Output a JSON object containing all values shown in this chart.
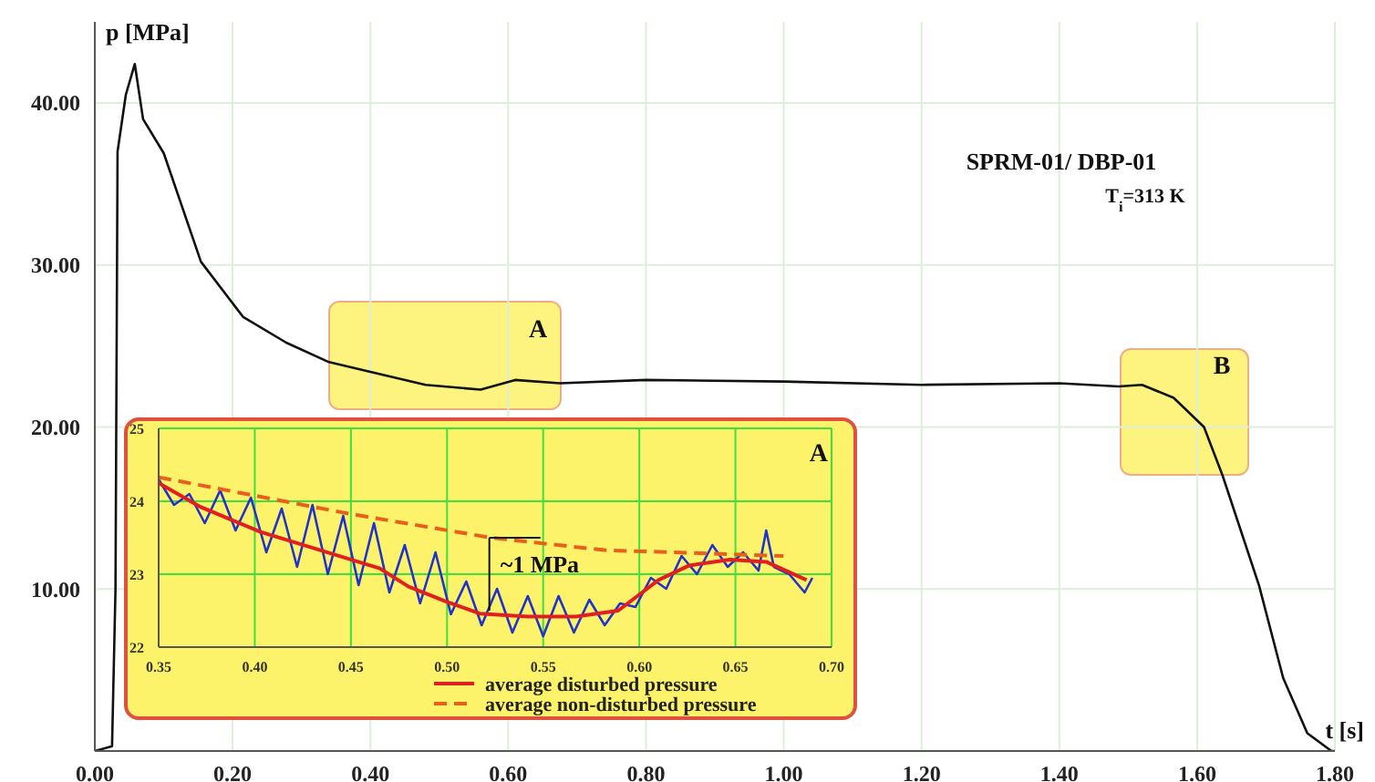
{
  "chart_data": [
    {
      "type": "line",
      "xlabel": "t [s]",
      "ylabel": "p [MPa]",
      "xlim": [
        0,
        1.8
      ],
      "ylim": [
        0,
        45
      ],
      "xticks": [
        {
          "value": 0,
          "label": "0.00"
        },
        {
          "value": 0.2,
          "label": "0.20"
        },
        {
          "value": 0.4,
          "label": "0.40"
        },
        {
          "value": 0.6,
          "label": "0.60"
        },
        {
          "value": 0.8,
          "label": "0.80"
        },
        {
          "value": 1,
          "label": "1.00"
        },
        {
          "value": 1.2,
          "label": "1.20"
        },
        {
          "value": 1.4,
          "label": "1.40"
        },
        {
          "value": 1.6,
          "label": "1.60"
        },
        {
          "value": 1.8,
          "label": "1.80"
        }
      ],
      "yticks": [
        {
          "value": 10,
          "label": "10.00"
        },
        {
          "value": 20,
          "label": "20.00"
        },
        {
          "value": 30,
          "label": "30.00"
        },
        {
          "value": 40,
          "label": "40.00"
        }
      ],
      "grid": true,
      "marker": "none",
      "annotations": [
        "SPRM-01/ DBP-01",
        "T$_{i}$=313 K",
        "A",
        "B"
      ],
      "series": [
        {
          "color": "#111111",
          "x": [
            0,
            0.025,
            0.03,
            0.033,
            0.045,
            0.058,
            0.07,
            0.1,
            0.154,
            0.215,
            0.278,
            0.34,
            0.4,
            0.48,
            0.56,
            0.61,
            0.675,
            0.8,
            1.0,
            1.2,
            1.4,
            1.486,
            1.52,
            1.566,
            1.61,
            1.637,
            1.69,
            1.725,
            1.76,
            1.795,
            1.8
          ],
          "values": [
            0,
            0.3,
            10,
            37,
            40.5,
            42.4,
            39,
            36.9,
            30.2,
            26.8,
            25.2,
            24,
            23.4,
            22.6,
            22.3,
            22.9,
            22.7,
            22.9,
            22.8,
            22.6,
            22.7,
            22.5,
            22.6,
            21.8,
            20,
            17,
            10.2,
            4.5,
            1.1,
            0,
            0
          ]
        }
      ]
    },
    {
      "type": "line",
      "xlim": [
        0.35,
        0.7
      ],
      "ylim": [
        22,
        25
      ],
      "xticks": [
        {
          "value": 0.35,
          "label": "0.35"
        },
        {
          "value": 0.4,
          "label": "0.40"
        },
        {
          "value": 0.45,
          "label": "0.45"
        },
        {
          "value": 0.5,
          "label": "0.50"
        },
        {
          "value": 0.55,
          "label": "0.55"
        },
        {
          "value": 0.6,
          "label": "0.60"
        },
        {
          "value": 0.65,
          "label": "0.65"
        },
        {
          "value": 0.7,
          "label": "0.70"
        }
      ],
      "yticks": [
        22,
        23,
        24,
        25
      ],
      "grid": true,
      "marker": "none",
      "legend": "bottom right",
      "annotations": [
        "A",
        {
          "text": "~1 MPa",
          "x": 0.522,
          "y": 23.5
        }
      ],
      "series": [
        {
          "color": "#2233cc",
          "x": [
            0.35,
            0.358,
            0.366,
            0.374,
            0.382,
            0.39,
            0.398,
            0.406,
            0.414,
            0.422,
            0.43,
            0.438,
            0.446,
            0.454,
            0.462,
            0.47,
            0.478,
            0.486,
            0.494,
            0.502,
            0.51,
            0.518,
            0.526,
            0.534,
            0.542,
            0.55,
            0.558,
            0.566,
            0.574,
            0.582,
            0.59,
            0.598,
            0.606,
            0.614,
            0.622,
            0.63,
            0.638,
            0.646,
            0.654,
            0.662,
            0.666,
            0.67,
            0.678,
            0.686,
            0.69
          ],
          "values": [
            24.3,
            23.95,
            24.1,
            23.7,
            24.15,
            23.6,
            24.05,
            23.3,
            23.9,
            23.1,
            23.95,
            23.0,
            23.8,
            22.85,
            23.7,
            22.75,
            23.4,
            22.6,
            23.3,
            22.45,
            22.9,
            22.3,
            22.8,
            22.2,
            22.7,
            22.15,
            22.7,
            22.2,
            22.65,
            22.3,
            22.6,
            22.55,
            22.95,
            22.8,
            23.25,
            23.0,
            23.4,
            23.1,
            23.3,
            23.05,
            23.6,
            23.1,
            23.0,
            22.75,
            22.95
          ]
        },
        {
          "name": "average disturbed pressure",
          "color": "#e02020",
          "line_style": "solid",
          "x": [
            0.35,
            0.372,
            0.403,
            0.434,
            0.465,
            0.48,
            0.499,
            0.517,
            0.542,
            0.567,
            0.589,
            0.61,
            0.626,
            0.647,
            0.666,
            0.687
          ],
          "values": [
            24.25,
            23.92,
            23.58,
            23.33,
            23.08,
            22.83,
            22.63,
            22.46,
            22.42,
            22.42,
            22.5,
            22.92,
            23.12,
            23.2,
            23.17,
            22.92
          ]
        },
        {
          "name": "average non-disturbed pressure",
          "color": "#e8601c",
          "line_style": "dashed",
          "x": [
            0.35,
            0.449,
            0.523,
            0.582,
            0.675
          ],
          "values": [
            24.33,
            23.83,
            23.5,
            23.33,
            23.25
          ]
        }
      ]
    }
  ]
}
